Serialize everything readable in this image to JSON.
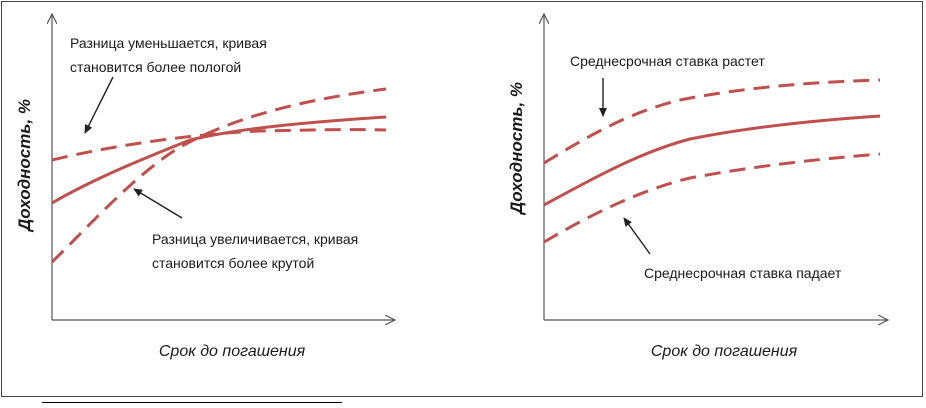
{
  "colors": {
    "curve": "#c0504d",
    "axis": "#555555",
    "arrow": "#222222",
    "text": "#1a1a1a"
  },
  "left_panel": {
    "y_label": "Доходность, %",
    "x_label": "Срок до погашения",
    "annotation_top_line1": "Разница уменьшается, кривая",
    "annotation_top_line2": "становится более пологой",
    "annotation_bottom_line1": "Разница увеличивается, кривая",
    "annotation_bottom_line2": "становится более крутой"
  },
  "right_panel": {
    "y_label": "Доходность, %",
    "x_label": "Срок до погашения",
    "annotation_top": "Среднесрочная ставка растет",
    "annotation_bottom": "Среднесрочная ставка падает"
  }
}
